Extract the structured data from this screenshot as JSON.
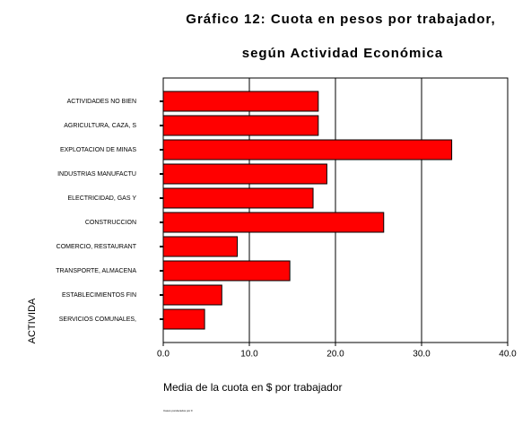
{
  "chart_data": {
    "type": "bar",
    "orientation": "horizontal",
    "title": [
      "Gráfico 12: Cuota en pesos por trabajador,",
      "según Actividad Económica"
    ],
    "categories": [
      "ACTIVIDADES NO BIEN",
      "AGRICULTURA, CAZA, S",
      "EXPLOTACION DE MINAS",
      "INDUSTRIAS MANUFACTU",
      "ELECTRICIDAD, GAS Y",
      "CONSTRUCCION",
      "COMERCIO, RESTAURANT",
      "TRANSPORTE, ALMACENA",
      "ESTABLECIMIENTOS FIN",
      "SERVICIOS COMUNALES,"
    ],
    "values": [
      18.0,
      18.0,
      33.5,
      19.0,
      17.4,
      25.6,
      8.6,
      14.7,
      6.8,
      4.8
    ],
    "color": "#ff0000",
    "xlim": [
      0,
      40
    ],
    "xticks": [
      {
        "value": 0,
        "label": "0.0"
      },
      {
        "value": 10,
        "label": "10.0"
      },
      {
        "value": 20,
        "label": "20.0"
      },
      {
        "value": 30,
        "label": "30.0"
      },
      {
        "value": 40,
        "label": "40.0"
      }
    ],
    "grid": true,
    "xlabel": "Media de la cuota en $ por trabajador",
    "ylabel": "ACTIVIDA",
    "footnote": "Casos ponderados por F"
  }
}
